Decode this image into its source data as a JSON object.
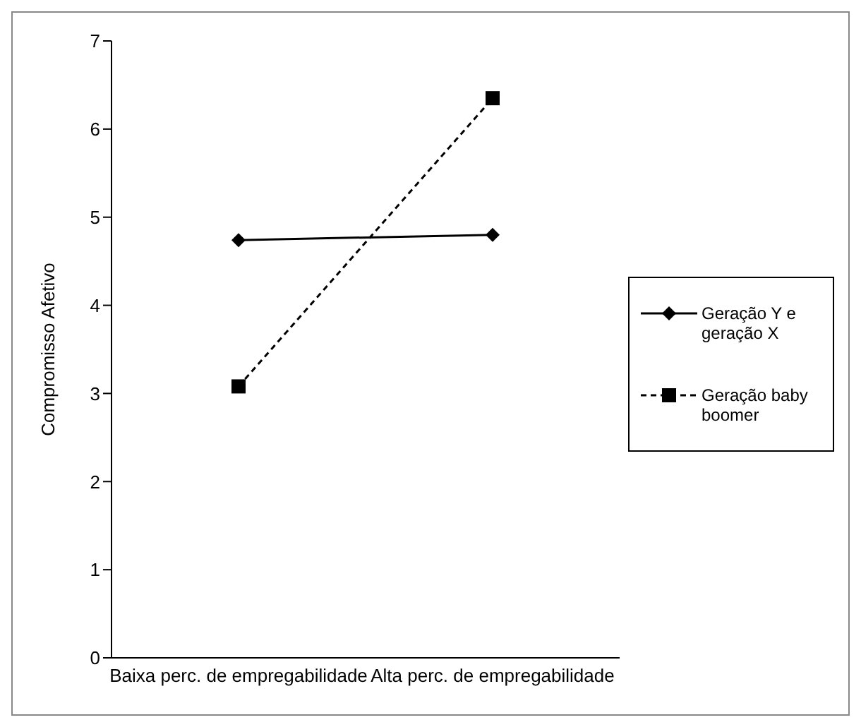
{
  "chart_data": {
    "type": "line",
    "ylabel": "Compromisso Afetivo",
    "categories": [
      "Baixa perc. de empregabilidade",
      "Alta perc. de empregabilidade"
    ],
    "series": [
      {
        "name": "Geração Y e geração X",
        "color": "#000000",
        "values": [
          4.74,
          4.8
        ],
        "marker": "diamond",
        "line_style": "solid"
      },
      {
        "name": "Geração baby boomer",
        "color": "#000000",
        "values": [
          3.08,
          6.35
        ],
        "marker": "square",
        "line_style": "dashed"
      }
    ],
    "ylim": [
      0,
      7
    ],
    "yticks": [
      0,
      1,
      2,
      3,
      4,
      5,
      6,
      7
    ],
    "grid": false,
    "legend": "right"
  }
}
